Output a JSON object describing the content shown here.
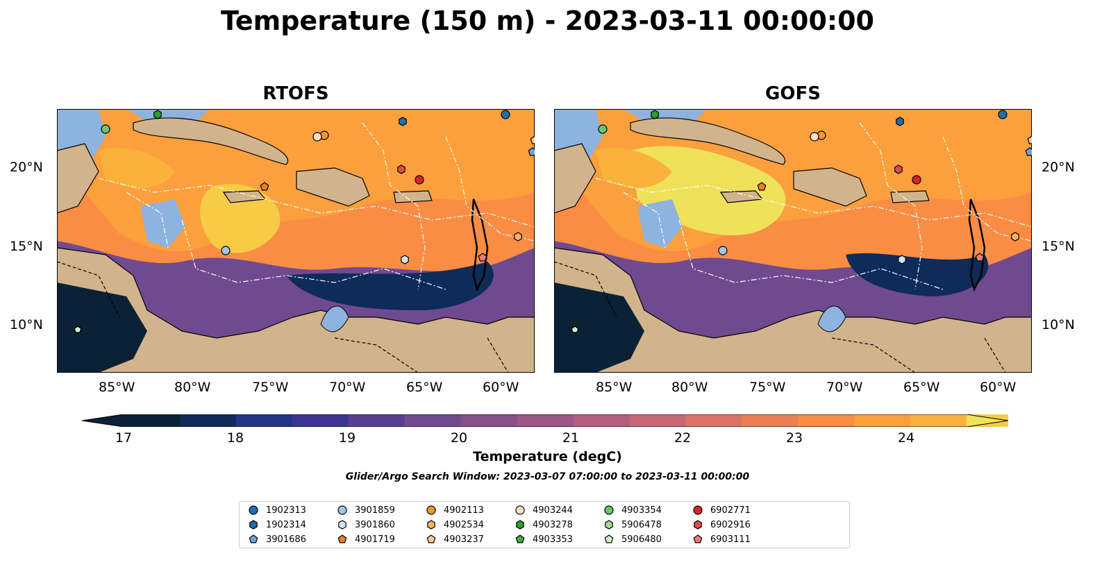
{
  "title": "Temperature (150 m) - 2023-03-11 00:00:00",
  "panels": [
    {
      "title": "RTOFS"
    },
    {
      "title": "GOFS"
    }
  ],
  "lon_ticks": [
    "85°W",
    "80°W",
    "75°W",
    "70°W",
    "65°W",
    "60°W"
  ],
  "lat_ticks": [
    "20°N",
    "15°N",
    "10°N"
  ],
  "colorbar": {
    "label": "Temperature (degC)",
    "ticks": [
      "17",
      "18",
      "19",
      "20",
      "21",
      "22",
      "23",
      "24"
    ],
    "min": 16.75,
    "max": 24.5,
    "colors": [
      "#0b2236",
      "#0e2b59",
      "#223583",
      "#3c3593",
      "#583f94",
      "#704a8f",
      "#865089",
      "#9c5785",
      "#b35e7d",
      "#c86874",
      "#db7466",
      "#ec7f55",
      "#f98d44",
      "#fba03c",
      "#fbb23a",
      "#f7cb45",
      "#efe15a"
    ]
  },
  "search_window": "Glider/Argo Search Window: 2023-03-07 07:00:00 to 2023-03-11 00:00:00",
  "legend": [
    {
      "id": "1902313",
      "shape": "circle",
      "color": "#1f6fb4"
    },
    {
      "id": "1902314",
      "shape": "hexagon",
      "color": "#1f6fb4"
    },
    {
      "id": "3901686",
      "shape": "pentagon",
      "color": "#6fa3d9"
    },
    {
      "id": "3901859",
      "shape": "circle",
      "color": "#9ec8ea"
    },
    {
      "id": "3901860",
      "shape": "hexagon",
      "color": "#cfe3f5"
    },
    {
      "id": "4901719",
      "shape": "pentagon",
      "color": "#f07f1a"
    },
    {
      "id": "4902113",
      "shape": "circle",
      "color": "#f5962d"
    },
    {
      "id": "4902534",
      "shape": "hexagon",
      "color": "#fbb168"
    },
    {
      "id": "4903237",
      "shape": "pentagon",
      "color": "#fcc995"
    },
    {
      "id": "4903244",
      "shape": "circle",
      "color": "#fde1c7"
    },
    {
      "id": "4903278",
      "shape": "hexagon",
      "color": "#2ca02c"
    },
    {
      "id": "4903353",
      "shape": "pentagon",
      "color": "#3fae3f"
    },
    {
      "id": "4903354",
      "shape": "circle",
      "color": "#6cc46c"
    },
    {
      "id": "5906478",
      "shape": "hexagon",
      "color": "#9fdc95"
    },
    {
      "id": "5906480",
      "shape": "pentagon",
      "color": "#d2f0c9"
    },
    {
      "id": "6902771",
      "shape": "circle",
      "color": "#d62728"
    },
    {
      "id": "6902916",
      "shape": "hexagon",
      "color": "#e04a4a"
    },
    {
      "id": "6903111",
      "shape": "pentagon",
      "color": "#f07a7a"
    }
  ],
  "map_colors": {
    "land": "#d2b48c",
    "shallow": "#8eb3df",
    "deep_cold": "#0b2236",
    "warm": "#f07d4f"
  }
}
